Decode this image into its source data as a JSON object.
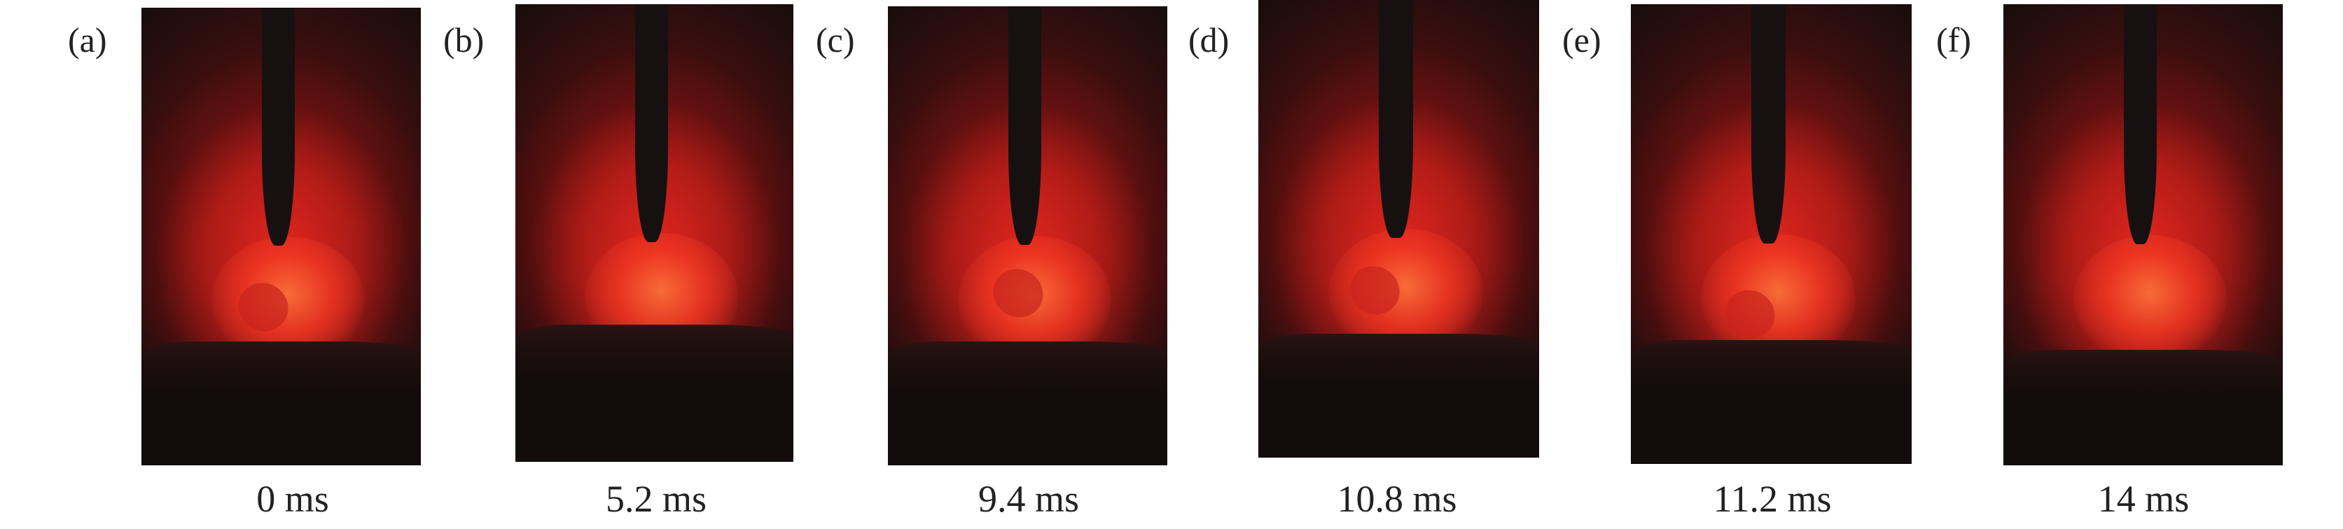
{
  "panels": [
    {
      "label": "(a)",
      "time": "0 ms"
    },
    {
      "label": "(b)",
      "time": "5.2 ms"
    },
    {
      "label": "(c)",
      "time": "9.4 ms"
    },
    {
      "label": "(d)",
      "time": "10.8 ms"
    },
    {
      "label": "(e)",
      "time": "11.2 ms"
    },
    {
      "label": "(f)",
      "time": "14 ms"
    }
  ],
  "colors": {
    "background": "#130d0d",
    "arc": "#e8281e",
    "electrode": "#171010"
  }
}
